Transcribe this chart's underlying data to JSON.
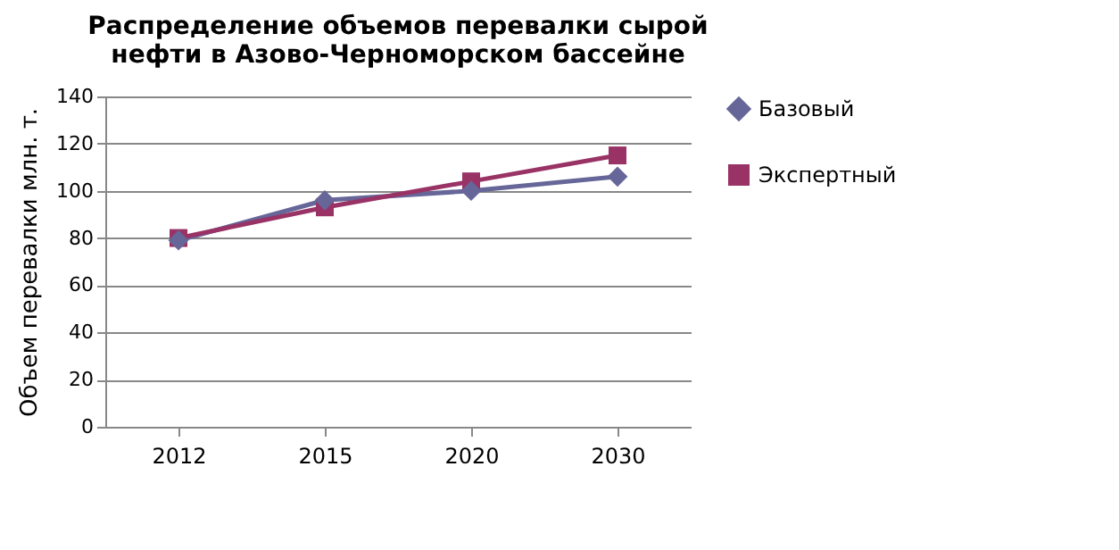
{
  "chart_data": {
    "type": "line",
    "title": "Распределение объемов перевалки сырой\nнефти в Азово-Черноморском бассейне",
    "ylabel": "Объем перевалки млн. т.",
    "categories": [
      "2012",
      "2015",
      "2020",
      "2030"
    ],
    "series": [
      {
        "name": "Базовый",
        "color": "#666699",
        "marker": "diamond",
        "values": [
          79,
          96,
          100,
          106
        ]
      },
      {
        "name": "Экспертный",
        "color": "#993366",
        "marker": "square",
        "values": [
          80,
          93,
          104,
          115
        ]
      }
    ],
    "ylim": [
      0,
      140
    ],
    "yticks": [
      0,
      20,
      40,
      60,
      80,
      100,
      120,
      140
    ],
    "grid": "y",
    "legend": "right",
    "line_style": "solid"
  }
}
